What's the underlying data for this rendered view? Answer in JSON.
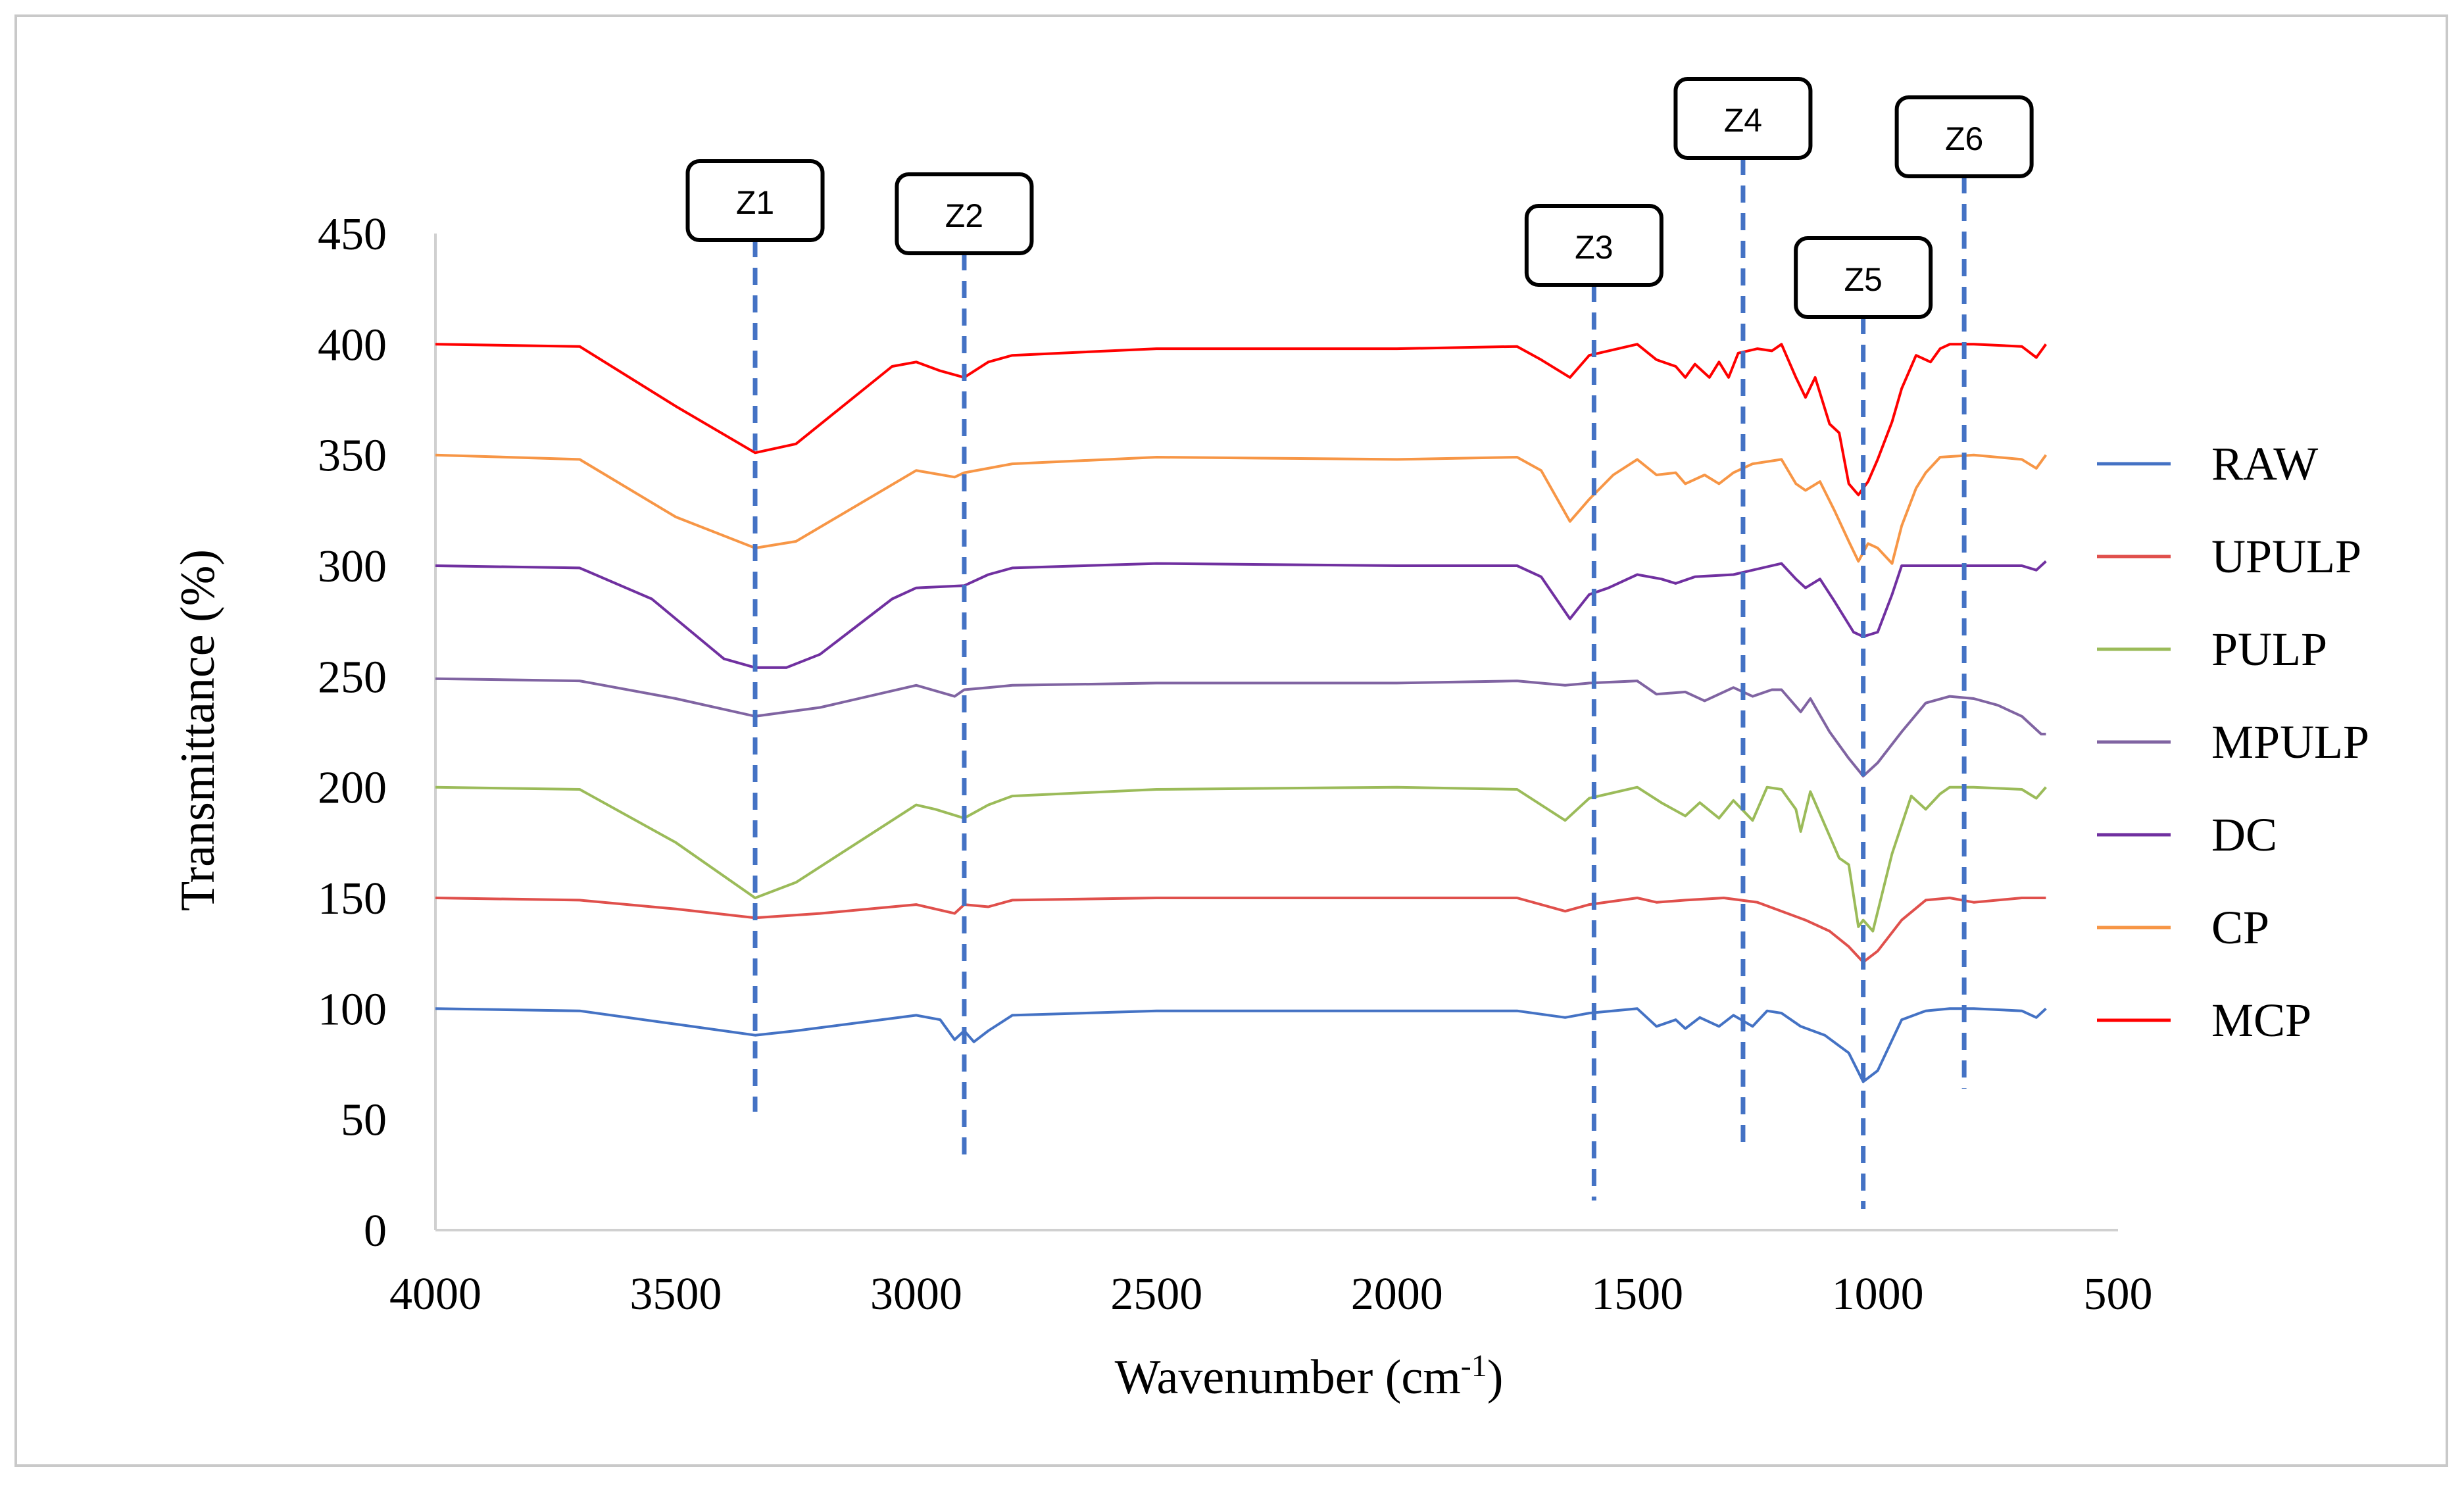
{
  "chart_data": {
    "type": "line",
    "title": "",
    "xlabel": "Wavenumber (cm",
    "xlabel_sup": "-1",
    "xlabel_suffix": ")",
    "ylabel": "Transmittance (%)",
    "xlim": [
      4000,
      500
    ],
    "ylim": [
      0,
      450
    ],
    "xticks": [
      4000,
      3500,
      3000,
      2500,
      2000,
      1500,
      1000,
      500
    ],
    "yticks": [
      0,
      50,
      100,
      150,
      200,
      250,
      300,
      350,
      400,
      450
    ],
    "legend_position": "right",
    "legend": [
      "RAW",
      "UPULP",
      "PULP",
      "MPULP",
      "DC",
      "CP",
      "MCP"
    ],
    "zones": [
      {
        "label": "Z1",
        "x": 3335
      },
      {
        "label": "Z2",
        "x": 2900
      },
      {
        "label": "Z3",
        "x": 1590
      },
      {
        "label": "Z4",
        "x": 1280
      },
      {
        "label": "Z5",
        "x": 1030
      },
      {
        "label": "Z6",
        "x": 820
      }
    ],
    "series": [
      {
        "name": "RAW",
        "color": "#4472C4",
        "points": [
          [
            4000,
            100
          ],
          [
            3700,
            99
          ],
          [
            3500,
            93
          ],
          [
            3335,
            88
          ],
          [
            3250,
            90
          ],
          [
            3000,
            97
          ],
          [
            2950,
            95
          ],
          [
            2920,
            86
          ],
          [
            2900,
            90
          ],
          [
            2880,
            85
          ],
          [
            2850,
            90
          ],
          [
            2800,
            97
          ],
          [
            2500,
            99
          ],
          [
            2000,
            99
          ],
          [
            1750,
            99
          ],
          [
            1650,
            96
          ],
          [
            1600,
            98
          ],
          [
            1500,
            100
          ],
          [
            1460,
            92
          ],
          [
            1420,
            95
          ],
          [
            1400,
            91
          ],
          [
            1370,
            96
          ],
          [
            1330,
            92
          ],
          [
            1300,
            97
          ],
          [
            1260,
            92
          ],
          [
            1230,
            99
          ],
          [
            1200,
            98
          ],
          [
            1160,
            92
          ],
          [
            1110,
            88
          ],
          [
            1060,
            80
          ],
          [
            1030,
            67
          ],
          [
            1000,
            72
          ],
          [
            950,
            95
          ],
          [
            900,
            99
          ],
          [
            850,
            100
          ],
          [
            800,
            100
          ],
          [
            700,
            99
          ],
          [
            670,
            96
          ],
          [
            650,
            100
          ]
        ]
      },
      {
        "name": "UPULP",
        "color": "#E0504C",
        "points": [
          [
            4000,
            150
          ],
          [
            3700,
            149
          ],
          [
            3500,
            145
          ],
          [
            3335,
            141
          ],
          [
            3200,
            143
          ],
          [
            3000,
            147
          ],
          [
            2920,
            143
          ],
          [
            2900,
            147
          ],
          [
            2850,
            146
          ],
          [
            2800,
            149
          ],
          [
            2500,
            150
          ],
          [
            2000,
            150
          ],
          [
            1750,
            150
          ],
          [
            1650,
            144
          ],
          [
            1600,
            147
          ],
          [
            1500,
            150
          ],
          [
            1460,
            148
          ],
          [
            1400,
            149
          ],
          [
            1320,
            150
          ],
          [
            1250,
            148
          ],
          [
            1150,
            140
          ],
          [
            1100,
            135
          ],
          [
            1060,
            128
          ],
          [
            1030,
            121
          ],
          [
            1000,
            126
          ],
          [
            950,
            140
          ],
          [
            900,
            149
          ],
          [
            850,
            150
          ],
          [
            800,
            148
          ],
          [
            700,
            150
          ],
          [
            650,
            150
          ]
        ]
      },
      {
        "name": "PULP",
        "color": "#9BBB59",
        "points": [
          [
            4000,
            200
          ],
          [
            3700,
            199
          ],
          [
            3500,
            175
          ],
          [
            3335,
            150
          ],
          [
            3250,
            157
          ],
          [
            3000,
            192
          ],
          [
            2960,
            190
          ],
          [
            2900,
            186
          ],
          [
            2850,
            192
          ],
          [
            2800,
            196
          ],
          [
            2500,
            199
          ],
          [
            2000,
            200
          ],
          [
            1750,
            199
          ],
          [
            1650,
            185
          ],
          [
            1600,
            195
          ],
          [
            1500,
            200
          ],
          [
            1450,
            193
          ],
          [
            1400,
            187
          ],
          [
            1370,
            193
          ],
          [
            1330,
            186
          ],
          [
            1300,
            194
          ],
          [
            1260,
            185
          ],
          [
            1230,
            200
          ],
          [
            1200,
            199
          ],
          [
            1170,
            190
          ],
          [
            1160,
            180
          ],
          [
            1140,
            198
          ],
          [
            1110,
            183
          ],
          [
            1080,
            168
          ],
          [
            1060,
            165
          ],
          [
            1040,
            137
          ],
          [
            1030,
            140
          ],
          [
            1010,
            135
          ],
          [
            970,
            170
          ],
          [
            930,
            196
          ],
          [
            900,
            190
          ],
          [
            870,
            197
          ],
          [
            850,
            200
          ],
          [
            800,
            200
          ],
          [
            700,
            199
          ],
          [
            670,
            195
          ],
          [
            650,
            200
          ]
        ]
      },
      {
        "name": "MPULP",
        "color": "#8064A2",
        "points": [
          [
            4000,
            249
          ],
          [
            3700,
            248
          ],
          [
            3500,
            240
          ],
          [
            3335,
            232
          ],
          [
            3200,
            236
          ],
          [
            3000,
            246
          ],
          [
            2920,
            241
          ],
          [
            2900,
            244
          ],
          [
            2850,
            245
          ],
          [
            2800,
            246
          ],
          [
            2500,
            247
          ],
          [
            2000,
            247
          ],
          [
            1750,
            248
          ],
          [
            1650,
            246
          ],
          [
            1600,
            247
          ],
          [
            1500,
            248
          ],
          [
            1460,
            242
          ],
          [
            1400,
            243
          ],
          [
            1360,
            239
          ],
          [
            1300,
            245
          ],
          [
            1260,
            241
          ],
          [
            1220,
            244
          ],
          [
            1200,
            244
          ],
          [
            1160,
            234
          ],
          [
            1140,
            240
          ],
          [
            1100,
            225
          ],
          [
            1060,
            213
          ],
          [
            1030,
            205
          ],
          [
            1000,
            211
          ],
          [
            950,
            225
          ],
          [
            900,
            238
          ],
          [
            850,
            241
          ],
          [
            800,
            240
          ],
          [
            750,
            237
          ],
          [
            700,
            232
          ],
          [
            660,
            224
          ],
          [
            650,
            224
          ]
        ]
      },
      {
        "name": "DC",
        "color": "#7030A0",
        "points": [
          [
            4000,
            300
          ],
          [
            3700,
            299
          ],
          [
            3550,
            285
          ],
          [
            3400,
            258
          ],
          [
            3335,
            254
          ],
          [
            3270,
            254
          ],
          [
            3200,
            260
          ],
          [
            3050,
            285
          ],
          [
            3000,
            290
          ],
          [
            2900,
            291
          ],
          [
            2850,
            296
          ],
          [
            2800,
            299
          ],
          [
            2500,
            301
          ],
          [
            2000,
            300
          ],
          [
            1750,
            300
          ],
          [
            1700,
            295
          ],
          [
            1640,
            276
          ],
          [
            1600,
            287
          ],
          [
            1560,
            290
          ],
          [
            1500,
            296
          ],
          [
            1450,
            294
          ],
          [
            1420,
            292
          ],
          [
            1380,
            295
          ],
          [
            1300,
            296
          ],
          [
            1260,
            298
          ],
          [
            1200,
            301
          ],
          [
            1170,
            294
          ],
          [
            1150,
            290
          ],
          [
            1120,
            294
          ],
          [
            1090,
            284
          ],
          [
            1050,
            270
          ],
          [
            1030,
            268
          ],
          [
            1000,
            270
          ],
          [
            970,
            287
          ],
          [
            950,
            300
          ],
          [
            900,
            300
          ],
          [
            800,
            300
          ],
          [
            700,
            300
          ],
          [
            670,
            298
          ],
          [
            650,
            302
          ]
        ]
      },
      {
        "name": "CP",
        "color": "#F79646",
        "points": [
          [
            4000,
            350
          ],
          [
            3700,
            348
          ],
          [
            3500,
            322
          ],
          [
            3335,
            308
          ],
          [
            3250,
            311
          ],
          [
            3000,
            343
          ],
          [
            2920,
            340
          ],
          [
            2900,
            342
          ],
          [
            2850,
            344
          ],
          [
            2800,
            346
          ],
          [
            2500,
            349
          ],
          [
            2000,
            348
          ],
          [
            1750,
            349
          ],
          [
            1700,
            343
          ],
          [
            1640,
            320
          ],
          [
            1600,
            330
          ],
          [
            1550,
            341
          ],
          [
            1500,
            348
          ],
          [
            1460,
            341
          ],
          [
            1420,
            342
          ],
          [
            1400,
            337
          ],
          [
            1360,
            341
          ],
          [
            1330,
            337
          ],
          [
            1300,
            342
          ],
          [
            1260,
            346
          ],
          [
            1200,
            348
          ],
          [
            1170,
            337
          ],
          [
            1150,
            334
          ],
          [
            1120,
            338
          ],
          [
            1090,
            325
          ],
          [
            1060,
            311
          ],
          [
            1040,
            302
          ],
          [
            1020,
            310
          ],
          [
            1000,
            308
          ],
          [
            970,
            301
          ],
          [
            950,
            318
          ],
          [
            920,
            335
          ],
          [
            900,
            342
          ],
          [
            870,
            349
          ],
          [
            800,
            350
          ],
          [
            700,
            348
          ],
          [
            670,
            344
          ],
          [
            650,
            350
          ]
        ]
      },
      {
        "name": "MCP",
        "color": "#FF0000",
        "points": [
          [
            4000,
            400
          ],
          [
            3700,
            399
          ],
          [
            3500,
            372
          ],
          [
            3335,
            351
          ],
          [
            3250,
            355
          ],
          [
            3050,
            390
          ],
          [
            3000,
            392
          ],
          [
            2950,
            388
          ],
          [
            2900,
            385
          ],
          [
            2850,
            392
          ],
          [
            2800,
            395
          ],
          [
            2500,
            398
          ],
          [
            2000,
            398
          ],
          [
            1750,
            399
          ],
          [
            1700,
            393
          ],
          [
            1640,
            385
          ],
          [
            1600,
            395
          ],
          [
            1500,
            400
          ],
          [
            1460,
            393
          ],
          [
            1420,
            390
          ],
          [
            1400,
            385
          ],
          [
            1380,
            391
          ],
          [
            1350,
            385
          ],
          [
            1330,
            392
          ],
          [
            1310,
            385
          ],
          [
            1290,
            396
          ],
          [
            1250,
            398
          ],
          [
            1220,
            397
          ],
          [
            1200,
            400
          ],
          [
            1170,
            385
          ],
          [
            1150,
            376
          ],
          [
            1130,
            385
          ],
          [
            1100,
            364
          ],
          [
            1080,
            360
          ],
          [
            1060,
            337
          ],
          [
            1040,
            332
          ],
          [
            1020,
            338
          ],
          [
            1000,
            348
          ],
          [
            970,
            365
          ],
          [
            950,
            380
          ],
          [
            920,
            395
          ],
          [
            890,
            392
          ],
          [
            870,
            398
          ],
          [
            850,
            400
          ],
          [
            800,
            400
          ],
          [
            700,
            399
          ],
          [
            670,
            394
          ],
          [
            650,
            400
          ]
        ]
      }
    ]
  }
}
